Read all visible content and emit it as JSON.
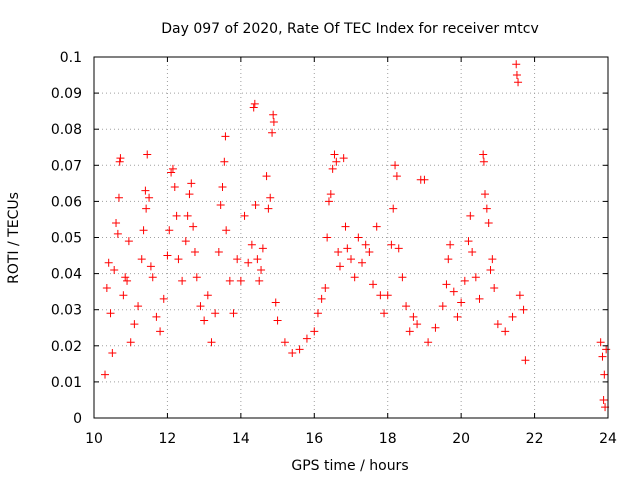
{
  "chart_data": {
    "type": "scatter",
    "title": "Day 097 of 2020, Rate Of TEC Index for receiver mtcv",
    "xlabel": "GPS time / hours",
    "ylabel": "ROTI / TECUs",
    "xlim": [
      10,
      24
    ],
    "ylim": [
      0,
      0.1
    ],
    "xticks": [
      "10",
      "12",
      "14",
      "16",
      "18",
      "20",
      "22",
      "24"
    ],
    "yticks": [
      "0",
      "0.01",
      "0.02",
      "0.03",
      "0.04",
      "0.05",
      "0.06",
      "0.07",
      "0.08",
      "0.09",
      "0.1"
    ],
    "grid": true,
    "marker": "+",
    "marker_color": "#ff0000",
    "series": [
      {
        "points": [
          [
            10.3,
            0.012
          ],
          [
            10.35,
            0.036
          ],
          [
            10.4,
            0.043
          ],
          [
            10.45,
            0.029
          ],
          [
            10.5,
            0.018
          ],
          [
            10.55,
            0.041
          ],
          [
            10.6,
            0.054
          ],
          [
            10.65,
            0.051
          ],
          [
            10.7,
            0.071
          ],
          [
            10.72,
            0.072
          ],
          [
            10.68,
            0.061
          ],
          [
            10.8,
            0.034
          ],
          [
            10.85,
            0.039
          ],
          [
            10.9,
            0.038
          ],
          [
            10.95,
            0.049
          ],
          [
            11.0,
            0.021
          ],
          [
            11.1,
            0.026
          ],
          [
            11.2,
            0.031
          ],
          [
            11.3,
            0.044
          ],
          [
            11.35,
            0.052
          ],
          [
            11.4,
            0.063
          ],
          [
            11.45,
            0.073
          ],
          [
            11.42,
            0.058
          ],
          [
            11.5,
            0.061
          ],
          [
            11.55,
            0.042
          ],
          [
            11.6,
            0.039
          ],
          [
            11.7,
            0.028
          ],
          [
            11.8,
            0.024
          ],
          [
            11.9,
            0.033
          ],
          [
            12.0,
            0.045
          ],
          [
            12.05,
            0.052
          ],
          [
            12.1,
            0.068
          ],
          [
            12.15,
            0.069
          ],
          [
            12.2,
            0.064
          ],
          [
            12.25,
            0.056
          ],
          [
            12.3,
            0.044
          ],
          [
            12.4,
            0.038
          ],
          [
            12.5,
            0.049
          ],
          [
            12.55,
            0.056
          ],
          [
            12.6,
            0.062
          ],
          [
            12.65,
            0.065
          ],
          [
            12.7,
            0.053
          ],
          [
            12.75,
            0.046
          ],
          [
            12.8,
            0.039
          ],
          [
            12.9,
            0.031
          ],
          [
            13.0,
            0.027
          ],
          [
            13.1,
            0.034
          ],
          [
            13.2,
            0.021
          ],
          [
            13.3,
            0.029
          ],
          [
            13.4,
            0.046
          ],
          [
            13.45,
            0.059
          ],
          [
            13.5,
            0.064
          ],
          [
            13.55,
            0.071
          ],
          [
            13.58,
            0.078
          ],
          [
            13.6,
            0.052
          ],
          [
            13.7,
            0.038
          ],
          [
            13.8,
            0.029
          ],
          [
            13.9,
            0.044
          ],
          [
            14.0,
            0.038
          ],
          [
            14.1,
            0.056
          ],
          [
            14.2,
            0.043
          ],
          [
            14.3,
            0.048
          ],
          [
            14.35,
            0.086
          ],
          [
            14.38,
            0.087
          ],
          [
            14.4,
            0.059
          ],
          [
            14.45,
            0.044
          ],
          [
            14.5,
            0.038
          ],
          [
            14.55,
            0.041
          ],
          [
            14.6,
            0.047
          ],
          [
            14.7,
            0.067
          ],
          [
            14.75,
            0.058
          ],
          [
            14.8,
            0.061
          ],
          [
            14.85,
            0.079
          ],
          [
            14.88,
            0.084
          ],
          [
            14.9,
            0.082
          ],
          [
            14.95,
            0.032
          ],
          [
            15.0,
            0.027
          ],
          [
            15.2,
            0.021
          ],
          [
            15.4,
            0.018
          ],
          [
            15.6,
            0.019
          ],
          [
            15.8,
            0.022
          ],
          [
            16.0,
            0.024
          ],
          [
            16.1,
            0.029
          ],
          [
            16.2,
            0.033
          ],
          [
            16.3,
            0.036
          ],
          [
            16.35,
            0.05
          ],
          [
            16.4,
            0.06
          ],
          [
            16.45,
            0.062
          ],
          [
            16.5,
            0.069
          ],
          [
            16.55,
            0.073
          ],
          [
            16.6,
            0.071
          ],
          [
            16.65,
            0.046
          ],
          [
            16.7,
            0.042
          ],
          [
            16.8,
            0.072
          ],
          [
            16.85,
            0.053
          ],
          [
            16.9,
            0.047
          ],
          [
            17.0,
            0.044
          ],
          [
            17.1,
            0.039
          ],
          [
            17.2,
            0.05
          ],
          [
            17.3,
            0.043
          ],
          [
            17.4,
            0.048
          ],
          [
            17.5,
            0.046
          ],
          [
            17.6,
            0.037
          ],
          [
            17.7,
            0.053
          ],
          [
            17.8,
            0.034
          ],
          [
            17.9,
            0.029
          ],
          [
            18.0,
            0.034
          ],
          [
            18.1,
            0.048
          ],
          [
            18.15,
            0.058
          ],
          [
            18.2,
            0.07
          ],
          [
            18.25,
            0.067
          ],
          [
            18.3,
            0.047
          ],
          [
            18.4,
            0.039
          ],
          [
            18.5,
            0.031
          ],
          [
            18.6,
            0.024
          ],
          [
            18.7,
            0.028
          ],
          [
            18.8,
            0.026
          ],
          [
            18.9,
            0.066
          ],
          [
            19.0,
            0.066
          ],
          [
            19.1,
            0.021
          ],
          [
            19.3,
            0.025
          ],
          [
            19.5,
            0.031
          ],
          [
            19.6,
            0.037
          ],
          [
            19.65,
            0.044
          ],
          [
            19.7,
            0.048
          ],
          [
            19.8,
            0.035
          ],
          [
            19.9,
            0.028
          ],
          [
            20.0,
            0.032
          ],
          [
            20.1,
            0.038
          ],
          [
            20.2,
            0.049
          ],
          [
            20.25,
            0.056
          ],
          [
            20.3,
            0.046
          ],
          [
            20.4,
            0.039
          ],
          [
            20.5,
            0.033
          ],
          [
            20.6,
            0.073
          ],
          [
            20.62,
            0.071
          ],
          [
            20.65,
            0.062
          ],
          [
            20.7,
            0.058
          ],
          [
            20.75,
            0.054
          ],
          [
            20.8,
            0.041
          ],
          [
            20.85,
            0.044
          ],
          [
            20.9,
            0.036
          ],
          [
            21.0,
            0.026
          ],
          [
            21.2,
            0.024
          ],
          [
            21.4,
            0.028
          ],
          [
            21.5,
            0.098
          ],
          [
            21.52,
            0.095
          ],
          [
            21.55,
            0.093
          ],
          [
            21.6,
            0.034
          ],
          [
            21.7,
            0.03
          ],
          [
            21.75,
            0.016
          ],
          [
            23.8,
            0.021
          ],
          [
            23.85,
            0.017
          ],
          [
            23.9,
            0.012
          ],
          [
            23.95,
            0.019
          ],
          [
            23.88,
            0.005
          ],
          [
            23.92,
            0.003
          ]
        ]
      }
    ]
  }
}
